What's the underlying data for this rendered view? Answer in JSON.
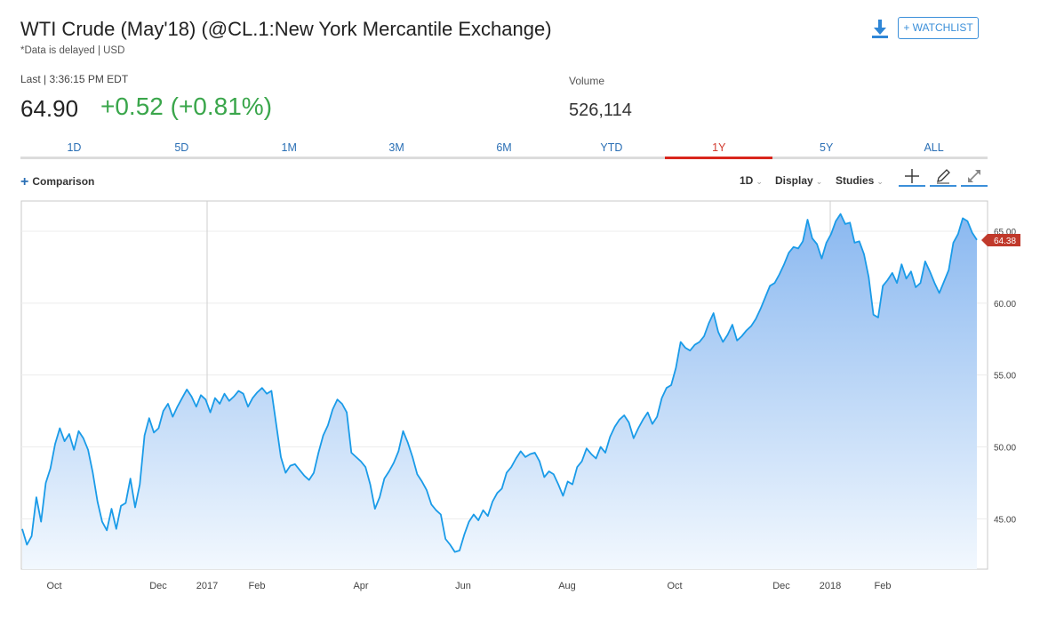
{
  "header": {
    "title": "WTI Crude (May'18) (@CL.1:New York Mercantile Exchange)",
    "subtitle": "*Data is delayed | USD",
    "watchlist_label": "+ WATCHLIST",
    "download_icon": "download-icon"
  },
  "quote": {
    "last_label": "Last | 3:36:15 PM EDT",
    "last_price": "64.90",
    "change": "+0.52 (+0.81%)",
    "change_color": "#3aa64b",
    "volume_label": "Volume",
    "volume_value": "526,114"
  },
  "tabs": [
    {
      "label": "1D"
    },
    {
      "label": "5D"
    },
    {
      "label": "1M"
    },
    {
      "label": "3M"
    },
    {
      "label": "6M"
    },
    {
      "label": "YTD"
    },
    {
      "label": "1Y",
      "active": true
    },
    {
      "label": "5Y"
    },
    {
      "label": "ALL"
    }
  ],
  "toolbar": {
    "comparison": "Comparison",
    "interval": "1D",
    "display": "Display",
    "studies": "Studies",
    "tools": [
      "crosshair-icon",
      "pencil-icon",
      "expand-icon"
    ]
  },
  "chart_data": {
    "type": "area",
    "series": [
      {
        "values": [
          44.3,
          43.2,
          43.8,
          46.5,
          44.8,
          47.5,
          48.5,
          50.2,
          51.3,
          50.4,
          50.9,
          49.8,
          51.1,
          50.6,
          49.8,
          48.2,
          46.2,
          44.8,
          44.2,
          45.7,
          44.3,
          45.9,
          46.1,
          47.8,
          45.8,
          47.4,
          50.8,
          52.0,
          51.0,
          51.3,
          52.5,
          53.0,
          52.1,
          52.8,
          53.4,
          54.0,
          53.5,
          52.8,
          53.6,
          53.3,
          52.4,
          53.4,
          53.0,
          53.7,
          53.2,
          53.5,
          53.9,
          53.7,
          52.8,
          53.4,
          53.8,
          54.1,
          53.7,
          53.9,
          51.6,
          49.3,
          48.2,
          48.7,
          48.8,
          48.4,
          48.0,
          47.7,
          48.2,
          49.6,
          50.8,
          51.5,
          52.6,
          53.3,
          53.0,
          52.4,
          49.6,
          49.3,
          49.0,
          48.6,
          47.4,
          45.7,
          46.5,
          47.8,
          48.3,
          48.9,
          49.7,
          51.1,
          50.3,
          49.3,
          48.1,
          47.6,
          47.0,
          46.0,
          45.6,
          45.3,
          43.6,
          43.2,
          42.7,
          42.8,
          43.9,
          44.8,
          45.3,
          44.9,
          45.6,
          45.2,
          46.2,
          46.8,
          47.1,
          48.2,
          48.6,
          49.2,
          49.7,
          49.3,
          49.5,
          49.6,
          49.0,
          47.9,
          48.3,
          48.1,
          47.4,
          46.6,
          47.6,
          47.4,
          48.6,
          49.0,
          49.9,
          49.5,
          49.2,
          50.0,
          49.6,
          50.7,
          51.4,
          51.9,
          52.2,
          51.7,
          50.6,
          51.3,
          51.9,
          52.4,
          51.6,
          52.1,
          53.4,
          54.1,
          54.3,
          55.5,
          57.3,
          56.9,
          56.7,
          57.1,
          57.3,
          57.7,
          58.6,
          59.3,
          58.0,
          57.3,
          57.8,
          58.5,
          57.4,
          57.7,
          58.1,
          58.4,
          58.9,
          59.6,
          60.4,
          61.2,
          61.4,
          62.0,
          62.7,
          63.5,
          63.9,
          63.8,
          64.3,
          65.8,
          64.5,
          64.1,
          63.1,
          64.2,
          64.8,
          65.7,
          66.2,
          65.5,
          65.6,
          64.2,
          64.3,
          63.4,
          61.8,
          59.2,
          59.0,
          61.2,
          61.6,
          62.1,
          61.4,
          62.7,
          61.7,
          62.2,
          61.1,
          61.4,
          62.9,
          62.2,
          61.4,
          60.7,
          61.5,
          62.3,
          64.2,
          64.8,
          65.9,
          65.7,
          64.9,
          64.4
        ]
      }
    ],
    "y_ticks": [
      "45.00",
      "50.00",
      "55.00",
      "60.00",
      "65.00"
    ],
    "ylim": [
      41.5,
      67.1
    ],
    "x_labels": [
      "Oct",
      "Dec",
      "2017",
      "Feb",
      "Apr",
      "Jun",
      "Aug",
      "Oct",
      "Dec",
      "2018",
      "Feb"
    ],
    "last_value_label": "64.38",
    "line_color": "#1a9be8",
    "fill_top_color": "#8ab8f0",
    "fill_bottom_color": "#f2f8fe",
    "last_label_color": "#c0392b",
    "grid": true
  }
}
